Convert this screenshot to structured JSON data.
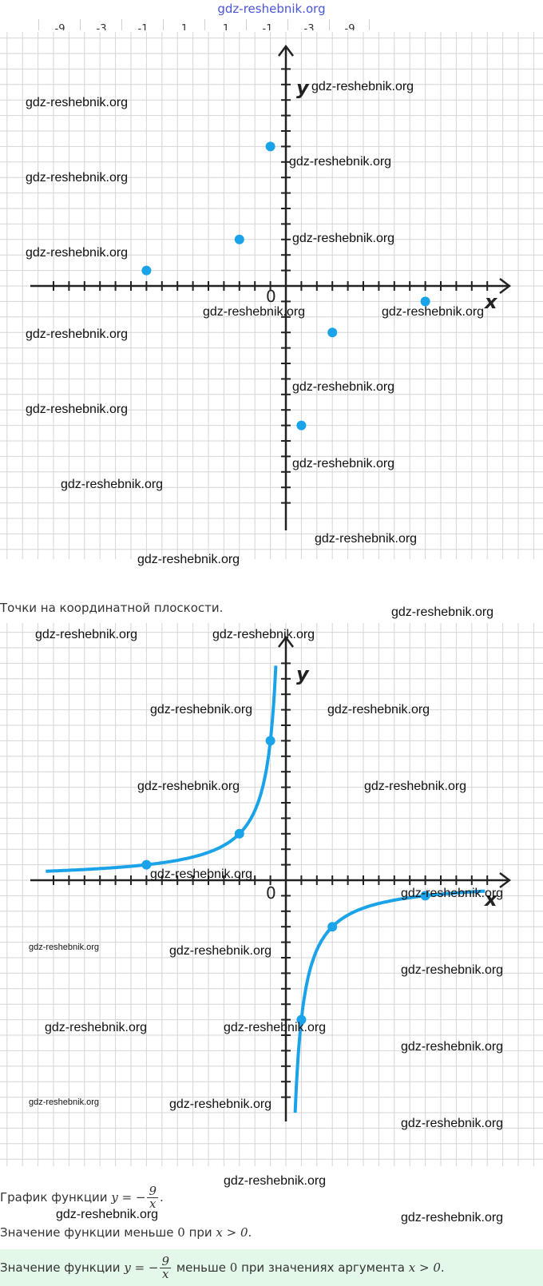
{
  "header": {
    "link": "gdz-reshebnik.org"
  },
  "header_table_cells": [
    "-9",
    "-3",
    "-1",
    "1",
    "1",
    "-1",
    "-3",
    "-9"
  ],
  "figure1": {
    "axis_labels": {
      "x": "x",
      "y": "y",
      "origin": "0"
    },
    "caption": "Точки на координатной плоскости."
  },
  "figure2": {
    "axis_labels": {
      "x": "x",
      "y": "y",
      "origin": "0"
    }
  },
  "texts": {
    "line1_prefix": "График функции",
    "line1_eq": "y = −",
    "frac_num": "9",
    "frac_den": "x",
    "line1_suffix": ".",
    "line2_prefix": "Значение функции меньше",
    "zero": "0",
    "line2_mid": "при",
    "cond": "x > 0",
    "period": ".",
    "line3_prefix": "Значение функции",
    "line3_mid1": "меньше",
    "line3_mid2": "при значениях аргумента"
  },
  "watermark": "gdz-reshebnik.org",
  "chart_data": [
    {
      "type": "scatter",
      "x": [
        -9,
        -3,
        -1,
        1,
        3,
        9
      ],
      "y": [
        1,
        3,
        9,
        -9,
        -3,
        -1
      ]
    },
    {
      "type": "line",
      "function": "y = -9/x",
      "marked_x": [
        -9,
        -3,
        -1,
        1,
        3,
        9
      ],
      "marked_y": [
        1,
        3,
        9,
        -9,
        -3,
        -1
      ]
    }
  ],
  "colors": {
    "accent": "#1aa3e8",
    "grid": "#d6d6d6",
    "axis": "#222222",
    "highlight_bg": "#e4f8ea"
  }
}
